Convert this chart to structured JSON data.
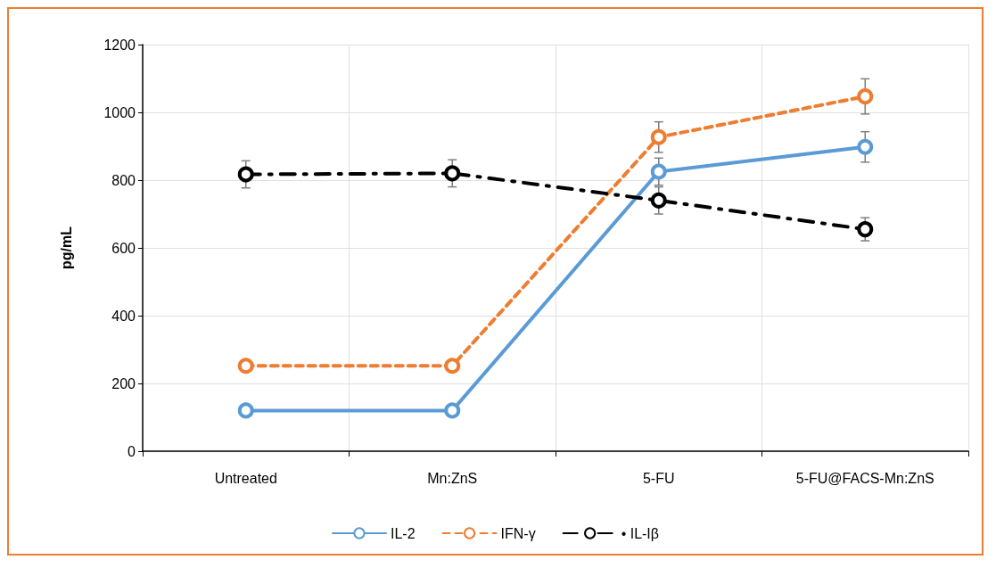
{
  "chart_data": {
    "type": "line",
    "ylabel": "pg/mL",
    "categories": [
      "Untreated",
      "Mn:ZnS",
      "5-FU",
      "5-FU@FACS-Mn:ZnS"
    ],
    "series": [
      {
        "name": "IL-2",
        "color": "#5b9bd5",
        "line_style": "solid",
        "values": [
          120,
          120,
          825,
          898
        ],
        "errors": [
          null,
          null,
          40,
          45
        ]
      },
      {
        "name": "IFN-γ",
        "color": "#ed7d31",
        "line_style": "dashed",
        "values": [
          252,
          252,
          927,
          1047
        ],
        "errors": [
          null,
          null,
          45,
          52
        ]
      },
      {
        "name": "• IL-Iβ",
        "color": "#000000",
        "line_style": "dashdot",
        "values": [
          817,
          820,
          740,
          655
        ],
        "errors": [
          40,
          40,
          40,
          34
        ]
      }
    ],
    "ylim": [
      0,
      1200
    ],
    "yticks": [
      0,
      200,
      400,
      600,
      800,
      1000,
      1200
    ],
    "grid": true,
    "legend": "bottom",
    "marker": "circle"
  }
}
